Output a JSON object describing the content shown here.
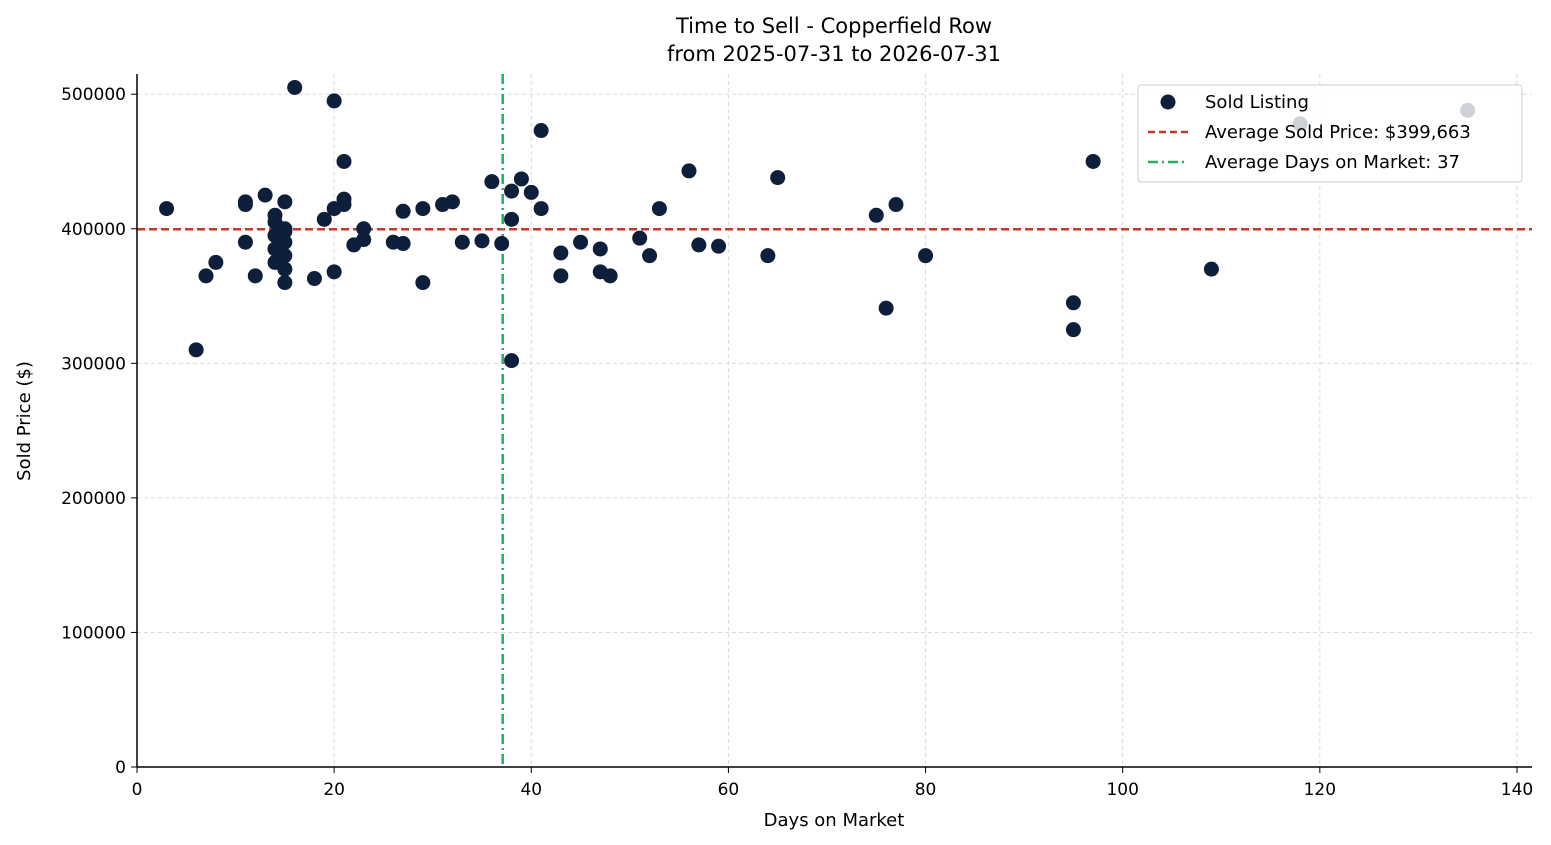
{
  "chart_data": {
    "type": "scatter",
    "title": "Time to Sell - Copperfield Row",
    "subtitle": "from 2025-07-31 to 2026-07-31",
    "xlabel": "Days on Market",
    "ylabel": "Sold Price ($)",
    "xlim": [
      0,
      142
    ],
    "ylim": [
      0,
      515000
    ],
    "x_ticks": [
      0,
      20,
      40,
      60,
      80,
      100,
      120,
      140
    ],
    "y_ticks": [
      0,
      100000,
      200000,
      300000,
      400000,
      500000
    ],
    "grid": true,
    "legend_position": "top-right",
    "colors": {
      "points": "#0d1f3a",
      "avg_price_line": "#c0392b",
      "avg_days_line": "#27ae60",
      "grid": "#d9d9d9"
    },
    "series": [
      {
        "name": "Sold Listing",
        "points": [
          [
            3,
            415000
          ],
          [
            6,
            310000
          ],
          [
            7,
            365000
          ],
          [
            8,
            375000
          ],
          [
            11,
            420000
          ],
          [
            11,
            418000
          ],
          [
            11,
            390000
          ],
          [
            12,
            365000
          ],
          [
            13,
            425000
          ],
          [
            14,
            410000
          ],
          [
            14,
            405000
          ],
          [
            14,
            395000
          ],
          [
            14,
            385000
          ],
          [
            14,
            375000
          ],
          [
            15,
            420000
          ],
          [
            15,
            400000
          ],
          [
            15,
            398000
          ],
          [
            15,
            390000
          ],
          [
            15,
            380000
          ],
          [
            15,
            370000
          ],
          [
            15,
            360000
          ],
          [
            16,
            505000
          ],
          [
            18,
            363000
          ],
          [
            19,
            407000
          ],
          [
            20,
            495000
          ],
          [
            20,
            415000
          ],
          [
            20,
            368000
          ],
          [
            21,
            450000
          ],
          [
            21,
            422000
          ],
          [
            21,
            418000
          ],
          [
            22,
            388000
          ],
          [
            23,
            400000
          ],
          [
            23,
            392000
          ],
          [
            26,
            390000
          ],
          [
            27,
            413000
          ],
          [
            27,
            389000
          ],
          [
            29,
            415000
          ],
          [
            29,
            360000
          ],
          [
            31,
            418000
          ],
          [
            32,
            420000
          ],
          [
            33,
            390000
          ],
          [
            35,
            391000
          ],
          [
            36,
            435000
          ],
          [
            37,
            389000
          ],
          [
            38,
            428000
          ],
          [
            38,
            407000
          ],
          [
            38,
            302000
          ],
          [
            39,
            437000
          ],
          [
            40,
            427000
          ],
          [
            41,
            473000
          ],
          [
            41,
            415000
          ],
          [
            43,
            382000
          ],
          [
            43,
            365000
          ],
          [
            45,
            390000
          ],
          [
            47,
            385000
          ],
          [
            47,
            368000
          ],
          [
            48,
            365000
          ],
          [
            51,
            393000
          ],
          [
            52,
            380000
          ],
          [
            53,
            415000
          ],
          [
            56,
            443000
          ],
          [
            57,
            388000
          ],
          [
            59,
            387000
          ],
          [
            64,
            380000
          ],
          [
            65,
            438000
          ],
          [
            75,
            410000
          ],
          [
            76,
            341000
          ],
          [
            77,
            418000
          ],
          [
            80,
            380000
          ],
          [
            95,
            345000
          ],
          [
            95,
            325000
          ],
          [
            97,
            450000
          ],
          [
            109,
            370000
          ],
          [
            118,
            478000
          ],
          [
            135,
            488000
          ]
        ]
      }
    ],
    "reference_lines": [
      {
        "name": "Average Sold Price: $399,663",
        "orientation": "horizontal",
        "value": 399663,
        "style": "dashed"
      },
      {
        "name": "Average Days on Market: 37",
        "orientation": "vertical",
        "value": 37.1,
        "style": "dash-dot"
      }
    ]
  }
}
